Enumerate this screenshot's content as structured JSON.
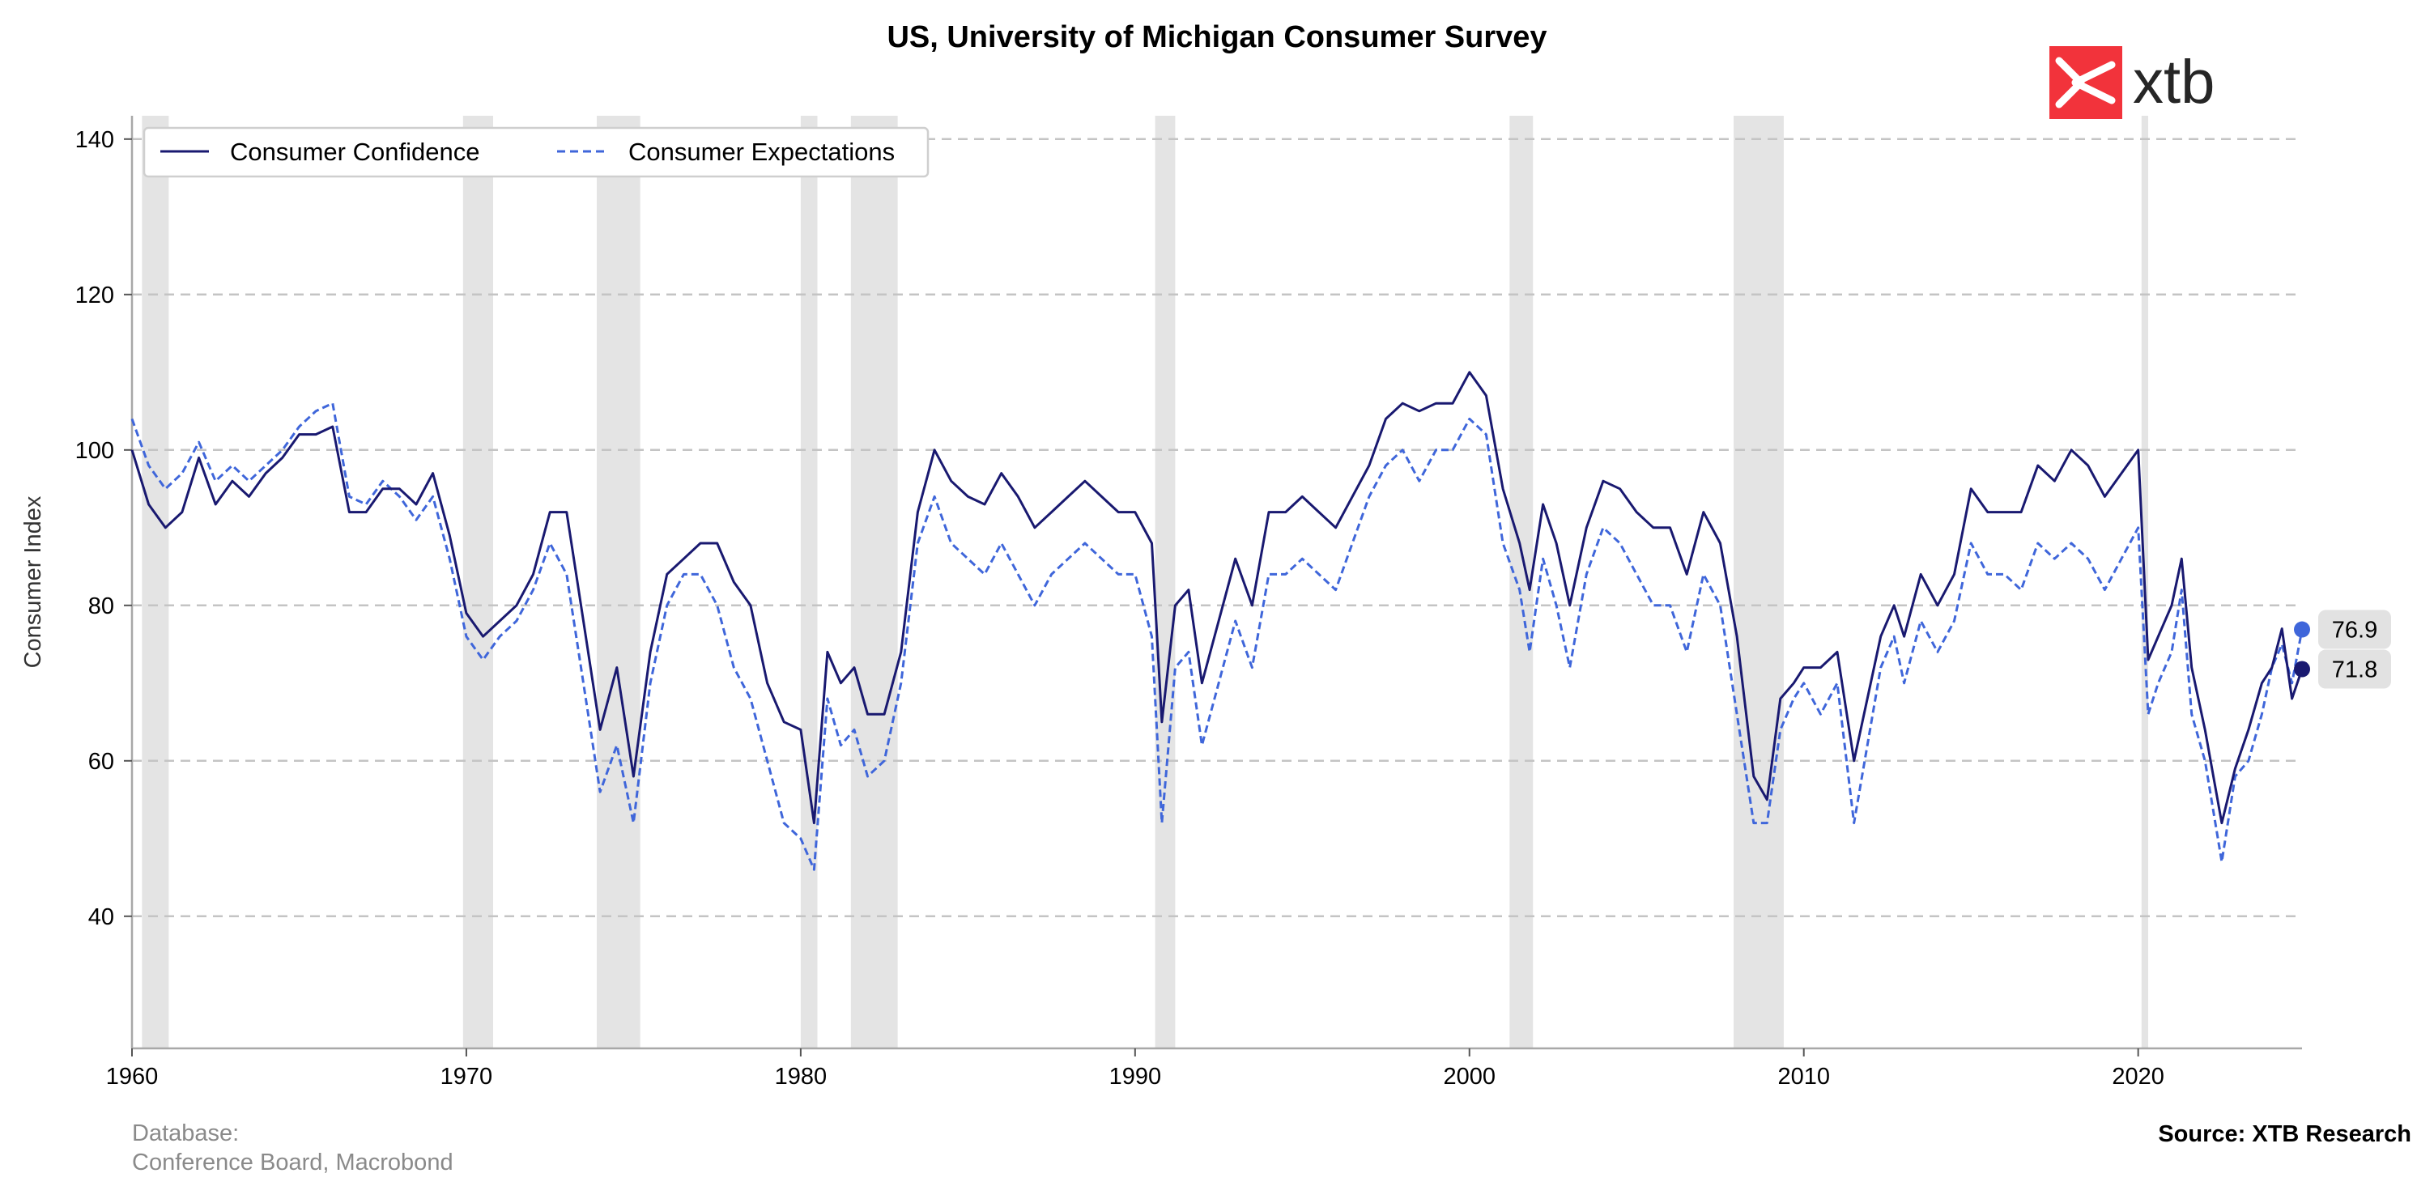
{
  "chart_data": {
    "type": "line",
    "title": "US, University of Michigan Consumer Survey",
    "ylabel": "Consumer Index",
    "xlabel": "",
    "xlim": [
      1960,
      2024.9
    ],
    "ylim": [
      23,
      143
    ],
    "x_ticks": [
      "1960",
      "1970",
      "1980",
      "1990",
      "2000",
      "2010",
      "2020"
    ],
    "y_ticks": [
      "40",
      "60",
      "80",
      "100",
      "120",
      "140"
    ],
    "grid": "horizontal dashed",
    "legend_position": "top-left",
    "recessions": [
      [
        1960.3,
        1961.1
      ],
      [
        1969.9,
        1970.8
      ],
      [
        1973.9,
        1975.2
      ],
      [
        1980.0,
        1980.5
      ],
      [
        1981.5,
        1982.9
      ],
      [
        1990.6,
        1991.2
      ],
      [
        2001.2,
        2001.9
      ],
      [
        2007.9,
        2009.4
      ],
      [
        2020.1,
        2020.3
      ]
    ],
    "series": [
      {
        "name": "Consumer Confidence",
        "color": "#191970",
        "style": "solid",
        "last_value_label": "71.8",
        "points": [
          [
            1960.0,
            100
          ],
          [
            1960.5,
            93
          ],
          [
            1961.0,
            90
          ],
          [
            1961.5,
            92
          ],
          [
            1962.0,
            99
          ],
          [
            1962.5,
            93
          ],
          [
            1963.0,
            96
          ],
          [
            1963.5,
            94
          ],
          [
            1964.0,
            97
          ],
          [
            1964.5,
            99
          ],
          [
            1965.0,
            102
          ],
          [
            1965.5,
            102
          ],
          [
            1966.0,
            103
          ],
          [
            1966.5,
            92
          ],
          [
            1967.0,
            92
          ],
          [
            1967.5,
            95
          ],
          [
            1968.0,
            95
          ],
          [
            1968.5,
            93
          ],
          [
            1969.0,
            97
          ],
          [
            1969.5,
            89
          ],
          [
            1970.0,
            79
          ],
          [
            1970.5,
            76
          ],
          [
            1971.0,
            78
          ],
          [
            1971.5,
            80
          ],
          [
            1972.0,
            84
          ],
          [
            1972.5,
            92
          ],
          [
            1973.0,
            92
          ],
          [
            1973.5,
            78
          ],
          [
            1974.0,
            64
          ],
          [
            1974.5,
            72
          ],
          [
            1975.0,
            58
          ],
          [
            1975.5,
            74
          ],
          [
            1976.0,
            84
          ],
          [
            1976.5,
            86
          ],
          [
            1977.0,
            88
          ],
          [
            1977.5,
            88
          ],
          [
            1978.0,
            83
          ],
          [
            1978.5,
            80
          ],
          [
            1979.0,
            70
          ],
          [
            1979.5,
            65
          ],
          [
            1980.0,
            64
          ],
          [
            1980.4,
            52
          ],
          [
            1980.8,
            74
          ],
          [
            1981.2,
            70
          ],
          [
            1981.6,
            72
          ],
          [
            1982.0,
            66
          ],
          [
            1982.5,
            66
          ],
          [
            1983.0,
            74
          ],
          [
            1983.5,
            92
          ],
          [
            1984.0,
            100
          ],
          [
            1984.5,
            96
          ],
          [
            1985.0,
            94
          ],
          [
            1985.5,
            93
          ],
          [
            1986.0,
            97
          ],
          [
            1986.5,
            94
          ],
          [
            1987.0,
            90
          ],
          [
            1987.5,
            92
          ],
          [
            1988.0,
            94
          ],
          [
            1988.5,
            96
          ],
          [
            1989.0,
            94
          ],
          [
            1989.5,
            92
          ],
          [
            1990.0,
            92
          ],
          [
            1990.5,
            88
          ],
          [
            1990.8,
            65
          ],
          [
            1991.2,
            80
          ],
          [
            1991.6,
            82
          ],
          [
            1992.0,
            70
          ],
          [
            1992.5,
            78
          ],
          [
            1993.0,
            86
          ],
          [
            1993.5,
            80
          ],
          [
            1994.0,
            92
          ],
          [
            1994.5,
            92
          ],
          [
            1995.0,
            94
          ],
          [
            1995.5,
            92
          ],
          [
            1996.0,
            90
          ],
          [
            1996.5,
            94
          ],
          [
            1997.0,
            98
          ],
          [
            1997.5,
            104
          ],
          [
            1998.0,
            106
          ],
          [
            1998.5,
            105
          ],
          [
            1999.0,
            106
          ],
          [
            1999.5,
            106
          ],
          [
            2000.0,
            110
          ],
          [
            2000.5,
            107
          ],
          [
            2001.0,
            95
          ],
          [
            2001.5,
            88
          ],
          [
            2001.8,
            82
          ],
          [
            2002.2,
            93
          ],
          [
            2002.6,
            88
          ],
          [
            2003.0,
            80
          ],
          [
            2003.5,
            90
          ],
          [
            2004.0,
            96
          ],
          [
            2004.5,
            95
          ],
          [
            2005.0,
            92
          ],
          [
            2005.5,
            90
          ],
          [
            2006.0,
            90
          ],
          [
            2006.5,
            84
          ],
          [
            2007.0,
            92
          ],
          [
            2007.5,
            88
          ],
          [
            2008.0,
            76
          ],
          [
            2008.5,
            58
          ],
          [
            2008.9,
            55
          ],
          [
            2009.3,
            68
          ],
          [
            2009.7,
            70
          ],
          [
            2010.0,
            72
          ],
          [
            2010.5,
            72
          ],
          [
            2011.0,
            74
          ],
          [
            2011.5,
            60
          ],
          [
            2011.9,
            68
          ],
          [
            2012.3,
            76
          ],
          [
            2012.7,
            80
          ],
          [
            2013.0,
            76
          ],
          [
            2013.5,
            84
          ],
          [
            2014.0,
            80
          ],
          [
            2014.5,
            84
          ],
          [
            2015.0,
            95
          ],
          [
            2015.5,
            92
          ],
          [
            2016.0,
            92
          ],
          [
            2016.5,
            92
          ],
          [
            2017.0,
            98
          ],
          [
            2017.5,
            96
          ],
          [
            2018.0,
            100
          ],
          [
            2018.5,
            98
          ],
          [
            2019.0,
            94
          ],
          [
            2019.5,
            97
          ],
          [
            2020.0,
            100
          ],
          [
            2020.3,
            73
          ],
          [
            2020.6,
            76
          ],
          [
            2021.0,
            80
          ],
          [
            2021.3,
            86
          ],
          [
            2021.6,
            72
          ],
          [
            2022.0,
            64
          ],
          [
            2022.5,
            52
          ],
          [
            2022.9,
            59
          ],
          [
            2023.3,
            64
          ],
          [
            2023.7,
            70
          ],
          [
            2024.0,
            72
          ],
          [
            2024.3,
            77
          ],
          [
            2024.6,
            68
          ],
          [
            2024.9,
            71.8
          ]
        ]
      },
      {
        "name": "Consumer Expectations",
        "color": "#3f66da",
        "style": "dashed",
        "last_value_label": "76.9",
        "points": [
          [
            1960.0,
            104
          ],
          [
            1960.5,
            98
          ],
          [
            1961.0,
            95
          ],
          [
            1961.5,
            97
          ],
          [
            1962.0,
            101
          ],
          [
            1962.5,
            96
          ],
          [
            1963.0,
            98
          ],
          [
            1963.5,
            96
          ],
          [
            1964.0,
            98
          ],
          [
            1964.5,
            100
          ],
          [
            1965.0,
            103
          ],
          [
            1965.5,
            105
          ],
          [
            1966.0,
            106
          ],
          [
            1966.5,
            94
          ],
          [
            1967.0,
            93
          ],
          [
            1967.5,
            96
          ],
          [
            1968.0,
            94
          ],
          [
            1968.5,
            91
          ],
          [
            1969.0,
            94
          ],
          [
            1969.5,
            86
          ],
          [
            1970.0,
            76
          ],
          [
            1970.5,
            73
          ],
          [
            1971.0,
            76
          ],
          [
            1971.5,
            78
          ],
          [
            1972.0,
            82
          ],
          [
            1972.5,
            88
          ],
          [
            1973.0,
            84
          ],
          [
            1973.5,
            70
          ],
          [
            1974.0,
            56
          ],
          [
            1974.5,
            62
          ],
          [
            1975.0,
            52
          ],
          [
            1975.5,
            70
          ],
          [
            1976.0,
            80
          ],
          [
            1976.5,
            84
          ],
          [
            1977.0,
            84
          ],
          [
            1977.5,
            80
          ],
          [
            1978.0,
            72
          ],
          [
            1978.5,
            68
          ],
          [
            1979.0,
            60
          ],
          [
            1979.5,
            52
          ],
          [
            1980.0,
            50
          ],
          [
            1980.4,
            46
          ],
          [
            1980.8,
            68
          ],
          [
            1981.2,
            62
          ],
          [
            1981.6,
            64
          ],
          [
            1982.0,
            58
          ],
          [
            1982.5,
            60
          ],
          [
            1983.0,
            70
          ],
          [
            1983.5,
            88
          ],
          [
            1984.0,
            94
          ],
          [
            1984.5,
            88
          ],
          [
            1985.0,
            86
          ],
          [
            1985.5,
            84
          ],
          [
            1986.0,
            88
          ],
          [
            1986.5,
            84
          ],
          [
            1987.0,
            80
          ],
          [
            1987.5,
            84
          ],
          [
            1988.0,
            86
          ],
          [
            1988.5,
            88
          ],
          [
            1989.0,
            86
          ],
          [
            1989.5,
            84
          ],
          [
            1990.0,
            84
          ],
          [
            1990.5,
            76
          ],
          [
            1990.8,
            52
          ],
          [
            1991.2,
            72
          ],
          [
            1991.6,
            74
          ],
          [
            1992.0,
            62
          ],
          [
            1992.5,
            70
          ],
          [
            1993.0,
            78
          ],
          [
            1993.5,
            72
          ],
          [
            1994.0,
            84
          ],
          [
            1994.5,
            84
          ],
          [
            1995.0,
            86
          ],
          [
            1995.5,
            84
          ],
          [
            1996.0,
            82
          ],
          [
            1996.5,
            88
          ],
          [
            1997.0,
            94
          ],
          [
            1997.5,
            98
          ],
          [
            1998.0,
            100
          ],
          [
            1998.5,
            96
          ],
          [
            1999.0,
            100
          ],
          [
            1999.5,
            100
          ],
          [
            2000.0,
            104
          ],
          [
            2000.5,
            102
          ],
          [
            2001.0,
            88
          ],
          [
            2001.5,
            82
          ],
          [
            2001.8,
            74
          ],
          [
            2002.2,
            86
          ],
          [
            2002.6,
            80
          ],
          [
            2003.0,
            72
          ],
          [
            2003.5,
            84
          ],
          [
            2004.0,
            90
          ],
          [
            2004.5,
            88
          ],
          [
            2005.0,
            84
          ],
          [
            2005.5,
            80
          ],
          [
            2006.0,
            80
          ],
          [
            2006.5,
            74
          ],
          [
            2007.0,
            84
          ],
          [
            2007.5,
            80
          ],
          [
            2008.0,
            66
          ],
          [
            2008.5,
            52
          ],
          [
            2008.9,
            52
          ],
          [
            2009.3,
            64
          ],
          [
            2009.7,
            68
          ],
          [
            2010.0,
            70
          ],
          [
            2010.5,
            66
          ],
          [
            2011.0,
            70
          ],
          [
            2011.5,
            52
          ],
          [
            2011.9,
            62
          ],
          [
            2012.3,
            72
          ],
          [
            2012.7,
            76
          ],
          [
            2013.0,
            70
          ],
          [
            2013.5,
            78
          ],
          [
            2014.0,
            74
          ],
          [
            2014.5,
            78
          ],
          [
            2015.0,
            88
          ],
          [
            2015.5,
            84
          ],
          [
            2016.0,
            84
          ],
          [
            2016.5,
            82
          ],
          [
            2017.0,
            88
          ],
          [
            2017.5,
            86
          ],
          [
            2018.0,
            88
          ],
          [
            2018.5,
            86
          ],
          [
            2019.0,
            82
          ],
          [
            2019.5,
            86
          ],
          [
            2020.0,
            90
          ],
          [
            2020.3,
            66
          ],
          [
            2020.6,
            70
          ],
          [
            2021.0,
            74
          ],
          [
            2021.3,
            82
          ],
          [
            2021.6,
            66
          ],
          [
            2022.0,
            60
          ],
          [
            2022.5,
            47
          ],
          [
            2022.9,
            58
          ],
          [
            2023.3,
            60
          ],
          [
            2023.7,
            66
          ],
          [
            2024.0,
            72
          ],
          [
            2024.3,
            75
          ],
          [
            2024.6,
            70
          ],
          [
            2024.9,
            76.9
          ]
        ]
      }
    ]
  },
  "logo": {
    "text": "xtb",
    "mark_color": "#f2333b"
  },
  "footer": {
    "database_label": "Database:",
    "database_value": "Conference Board, Macrobond",
    "source": "Source: XTB Research"
  }
}
